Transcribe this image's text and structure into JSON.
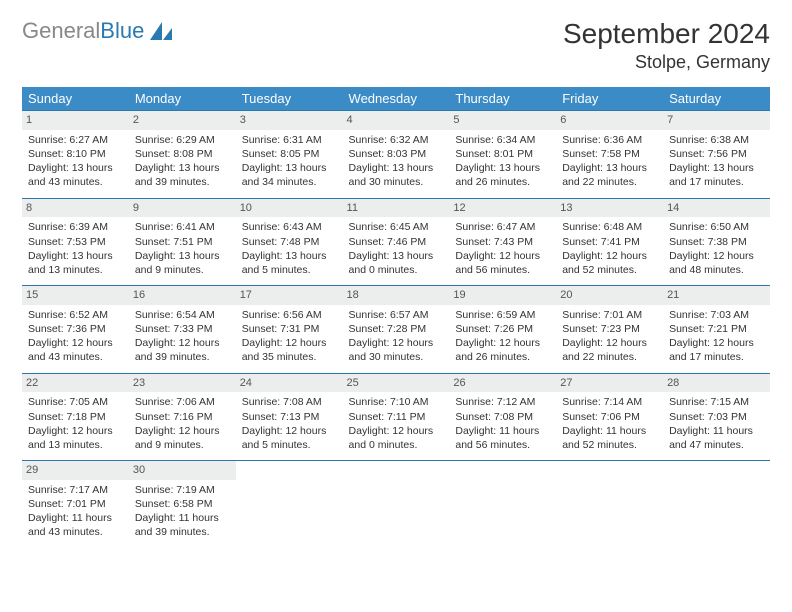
{
  "brand": {
    "part1": "General",
    "part2": "Blue"
  },
  "title": "September 2024",
  "location": "Stolpe, Germany",
  "colors": {
    "header_bg": "#3b8bc6",
    "border": "#2a7ab0",
    "daynum_bg": "#eceded",
    "text": "#333333",
    "brand_gray": "#888888",
    "brand_blue": "#2a7ab0"
  },
  "weekdays": [
    "Sunday",
    "Monday",
    "Tuesday",
    "Wednesday",
    "Thursday",
    "Friday",
    "Saturday"
  ],
  "days": [
    {
      "n": 1,
      "sunrise": "6:27 AM",
      "sunset": "8:10 PM",
      "daylight": "13 hours and 43 minutes."
    },
    {
      "n": 2,
      "sunrise": "6:29 AM",
      "sunset": "8:08 PM",
      "daylight": "13 hours and 39 minutes."
    },
    {
      "n": 3,
      "sunrise": "6:31 AM",
      "sunset": "8:05 PM",
      "daylight": "13 hours and 34 minutes."
    },
    {
      "n": 4,
      "sunrise": "6:32 AM",
      "sunset": "8:03 PM",
      "daylight": "13 hours and 30 minutes."
    },
    {
      "n": 5,
      "sunrise": "6:34 AM",
      "sunset": "8:01 PM",
      "daylight": "13 hours and 26 minutes."
    },
    {
      "n": 6,
      "sunrise": "6:36 AM",
      "sunset": "7:58 PM",
      "daylight": "13 hours and 22 minutes."
    },
    {
      "n": 7,
      "sunrise": "6:38 AM",
      "sunset": "7:56 PM",
      "daylight": "13 hours and 17 minutes."
    },
    {
      "n": 8,
      "sunrise": "6:39 AM",
      "sunset": "7:53 PM",
      "daylight": "13 hours and 13 minutes."
    },
    {
      "n": 9,
      "sunrise": "6:41 AM",
      "sunset": "7:51 PM",
      "daylight": "13 hours and 9 minutes."
    },
    {
      "n": 10,
      "sunrise": "6:43 AM",
      "sunset": "7:48 PM",
      "daylight": "13 hours and 5 minutes."
    },
    {
      "n": 11,
      "sunrise": "6:45 AM",
      "sunset": "7:46 PM",
      "daylight": "13 hours and 0 minutes."
    },
    {
      "n": 12,
      "sunrise": "6:47 AM",
      "sunset": "7:43 PM",
      "daylight": "12 hours and 56 minutes."
    },
    {
      "n": 13,
      "sunrise": "6:48 AM",
      "sunset": "7:41 PM",
      "daylight": "12 hours and 52 minutes."
    },
    {
      "n": 14,
      "sunrise": "6:50 AM",
      "sunset": "7:38 PM",
      "daylight": "12 hours and 48 minutes."
    },
    {
      "n": 15,
      "sunrise": "6:52 AM",
      "sunset": "7:36 PM",
      "daylight": "12 hours and 43 minutes."
    },
    {
      "n": 16,
      "sunrise": "6:54 AM",
      "sunset": "7:33 PM",
      "daylight": "12 hours and 39 minutes."
    },
    {
      "n": 17,
      "sunrise": "6:56 AM",
      "sunset": "7:31 PM",
      "daylight": "12 hours and 35 minutes."
    },
    {
      "n": 18,
      "sunrise": "6:57 AM",
      "sunset": "7:28 PM",
      "daylight": "12 hours and 30 minutes."
    },
    {
      "n": 19,
      "sunrise": "6:59 AM",
      "sunset": "7:26 PM",
      "daylight": "12 hours and 26 minutes."
    },
    {
      "n": 20,
      "sunrise": "7:01 AM",
      "sunset": "7:23 PM",
      "daylight": "12 hours and 22 minutes."
    },
    {
      "n": 21,
      "sunrise": "7:03 AM",
      "sunset": "7:21 PM",
      "daylight": "12 hours and 17 minutes."
    },
    {
      "n": 22,
      "sunrise": "7:05 AM",
      "sunset": "7:18 PM",
      "daylight": "12 hours and 13 minutes."
    },
    {
      "n": 23,
      "sunrise": "7:06 AM",
      "sunset": "7:16 PM",
      "daylight": "12 hours and 9 minutes."
    },
    {
      "n": 24,
      "sunrise": "7:08 AM",
      "sunset": "7:13 PM",
      "daylight": "12 hours and 5 minutes."
    },
    {
      "n": 25,
      "sunrise": "7:10 AM",
      "sunset": "7:11 PM",
      "daylight": "12 hours and 0 minutes."
    },
    {
      "n": 26,
      "sunrise": "7:12 AM",
      "sunset": "7:08 PM",
      "daylight": "11 hours and 56 minutes."
    },
    {
      "n": 27,
      "sunrise": "7:14 AM",
      "sunset": "7:06 PM",
      "daylight": "11 hours and 52 minutes."
    },
    {
      "n": 28,
      "sunrise": "7:15 AM",
      "sunset": "7:03 PM",
      "daylight": "11 hours and 47 minutes."
    },
    {
      "n": 29,
      "sunrise": "7:17 AM",
      "sunset": "7:01 PM",
      "daylight": "11 hours and 43 minutes."
    },
    {
      "n": 30,
      "sunrise": "7:19 AM",
      "sunset": "6:58 PM",
      "daylight": "11 hours and 39 minutes."
    }
  ],
  "labels": {
    "sunrise": "Sunrise:",
    "sunset": "Sunset:",
    "daylight": "Daylight:"
  }
}
